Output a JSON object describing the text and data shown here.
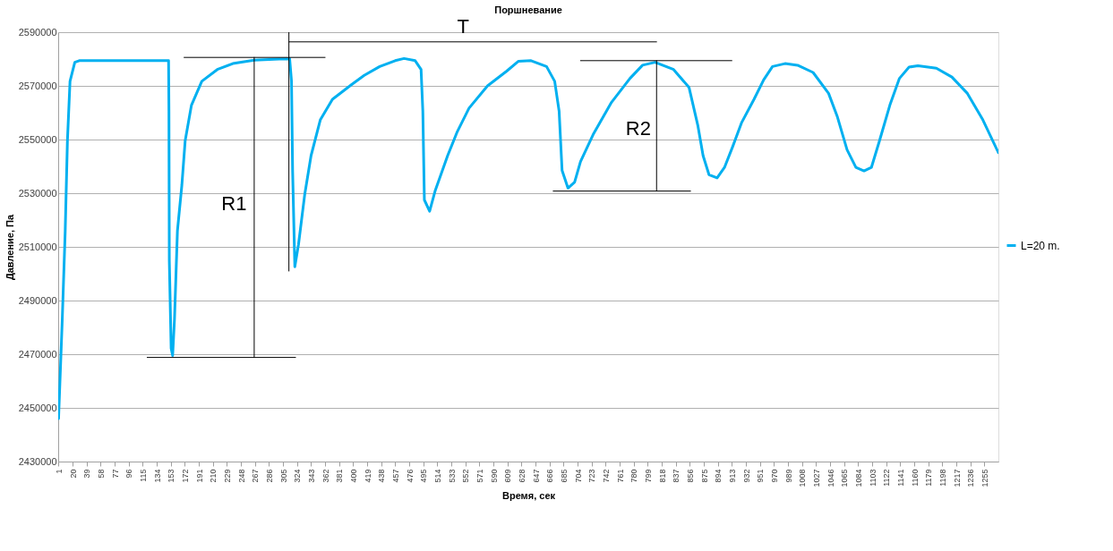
{
  "chart_data": {
    "type": "line",
    "title": "Поршневание",
    "xlabel": "Время, сек",
    "ylabel": "Давление, Па",
    "legend": "right",
    "grid": "y",
    "marker": "none",
    "line_style": "solid",
    "xlim": [
      0.5,
      1274
    ],
    "ylim": [
      2430000,
      2590000
    ],
    "xticks": [
      1,
      20,
      39,
      58,
      77,
      96,
      115,
      134,
      153,
      172,
      191,
      210,
      229,
      248,
      267,
      286,
      305,
      324,
      343,
      362,
      381,
      400,
      419,
      438,
      457,
      476,
      495,
      514,
      533,
      552,
      571,
      590,
      609,
      628,
      647,
      666,
      685,
      704,
      723,
      742,
      761,
      780,
      799,
      818,
      837,
      856,
      875,
      894,
      913,
      932,
      951,
      970,
      989,
      1008,
      1027,
      1046,
      1065,
      1084,
      1103,
      1122,
      1141,
      1160,
      1179,
      1198,
      1217,
      1236,
      1255
    ],
    "yticks": [
      2430000,
      2450000,
      2470000,
      2490000,
      2510000,
      2530000,
      2550000,
      2570000,
      2590000
    ],
    "series": [
      {
        "name": "L=20 m.",
        "color": "#00b0f0",
        "x": [
          1,
          6,
          10,
          13,
          16.5,
          23,
          29,
          100,
          150,
          150.5,
          151,
          153.5,
          155.5,
          158,
          162,
          168,
          172.5,
          181,
          195,
          216,
          237,
          266,
          300,
          314,
          316.5,
          318,
          321,
          326,
          334.5,
          343,
          355.5,
          372,
          398,
          415,
          436,
          457,
          469,
          484,
          492,
          494.4,
          496.5,
          503.6,
          511,
          528,
          541,
          557,
          582,
          608,
          624,
          641,
          662,
          673,
          679,
          683,
          691,
          700,
          708,
          725,
          750,
          775,
          792,
          809,
          834,
          855,
          867,
          874,
          882,
          893,
          903,
          914,
          926,
          943,
          956,
          968,
          985,
          1002,
          1023,
          1044,
          1056,
          1069,
          1081,
          1092,
          1102,
          1113,
          1127,
          1140,
          1153,
          1165,
          1190,
          1211,
          1232,
          1253,
          1274
        ],
        "values": [
          2446000,
          2483000,
          2516000,
          2549600,
          2571700,
          2578800,
          2579400,
          2579400,
          2579400,
          2560600,
          2505000,
          2472200,
          2469500,
          2483000,
          2516000,
          2533000,
          2549600,
          2562800,
          2571700,
          2576100,
          2578300,
          2579600,
          2580000,
          2580100,
          2571700,
          2538500,
          2502600,
          2510900,
          2529700,
          2544000,
          2557300,
          2565000,
          2570500,
          2573900,
          2577200,
          2579400,
          2580200,
          2579400,
          2576100,
          2560600,
          2527500,
          2523300,
          2530800,
          2544000,
          2552900,
          2561700,
          2570000,
          2575500,
          2579200,
          2579400,
          2577200,
          2571700,
          2560600,
          2538500,
          2531900,
          2534100,
          2541800,
          2551800,
          2563900,
          2572800,
          2577700,
          2578800,
          2576100,
          2569400,
          2555100,
          2544000,
          2536900,
          2535700,
          2539600,
          2547300,
          2556200,
          2565000,
          2572200,
          2577200,
          2578300,
          2577700,
          2575000,
          2567200,
          2558400,
          2546200,
          2539600,
          2538300,
          2539600,
          2549600,
          2562800,
          2572800,
          2577000,
          2577500,
          2576600,
          2573300,
          2567200,
          2557300,
          2545100
        ]
      },
      {
        "color": "#000000",
        "x": [
          171,
          362
        ],
        "values": [
          2580600,
          2580600
        ]
      },
      {
        "color": "#000000",
        "x": [
          121,
          322
        ],
        "values": [
          2468800,
          2468800
        ]
      },
      {
        "color": "#000000",
        "x": [
          266,
          266
        ],
        "values": [
          2580600,
          2468800
        ]
      },
      {
        "color": "#000000",
        "x": [
          313,
          313
        ],
        "values": [
          2590000,
          2501000
        ]
      },
      {
        "color": "#000000",
        "x": [
          313,
          811
        ],
        "values": [
          2586400,
          2586400
        ]
      },
      {
        "color": "#000000",
        "x": [
          708,
          913
        ],
        "values": [
          2579400,
          2579400
        ]
      },
      {
        "color": "#000000",
        "x": [
          671,
          857
        ],
        "values": [
          2530800,
          2530800
        ]
      },
      {
        "color": "#000000",
        "x": [
          811,
          811
        ],
        "values": [
          2579400,
          2530800
        ]
      }
    ],
    "annotations": [
      "R1",
      {
        "text": "T",
        "x": 549,
        "y": 2588000
      },
      "R2"
    ]
  }
}
